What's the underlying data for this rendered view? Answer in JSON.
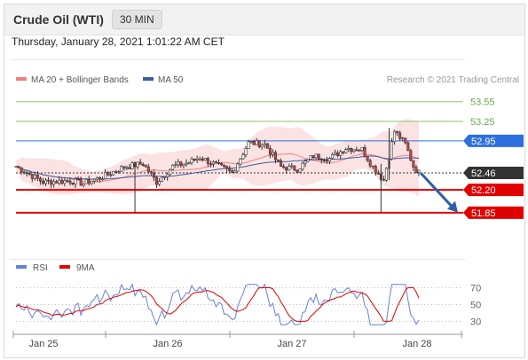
{
  "header": {
    "title": "Crude Oil (WTI)",
    "timeframe": "30 MIN"
  },
  "timestamp": "Thursday, January 28, 2021 1:01:22 AM CET",
  "chart_data": [
    {
      "type": "candlestick",
      "legend": [
        {
          "label": "MA 20 + Bollinger Bands",
          "color": "#f08080"
        },
        {
          "label": "MA 50",
          "color": "#3a5fa0"
        }
      ],
      "credit": "Research © 2021 Trading Central",
      "ylim": [
        51.55,
        53.75
      ],
      "levels": [
        {
          "value": 53.55,
          "label": "53.55",
          "color": "#8fc46a",
          "style": "text"
        },
        {
          "value": 53.25,
          "label": "53.25",
          "color": "#8fc46a",
          "style": "text"
        },
        {
          "value": 52.95,
          "label": "52.95",
          "color": "#2e6fe0",
          "style": "box"
        },
        {
          "value": 52.46,
          "label": "52.46",
          "color": "#333333",
          "style": "box"
        },
        {
          "value": 52.2,
          "label": "52.20",
          "color": "#e00000",
          "style": "box"
        },
        {
          "value": 51.85,
          "label": "51.85",
          "color": "#e00000",
          "style": "box"
        }
      ],
      "projection": {
        "from_value": 52.46,
        "to_value": 51.88,
        "color": "#2f5ea8"
      }
    },
    {
      "type": "line",
      "legend": [
        {
          "label": "RSI",
          "color": "#6680d8"
        },
        {
          "label": "9MA",
          "color": "#e00000"
        }
      ],
      "ylim": [
        22,
        80
      ],
      "y_ticks": [
        "70",
        "50",
        "30"
      ],
      "x_ticks": [
        "Jan 25",
        "Jan 26",
        "Jan 27",
        "Jan 28"
      ]
    }
  ]
}
